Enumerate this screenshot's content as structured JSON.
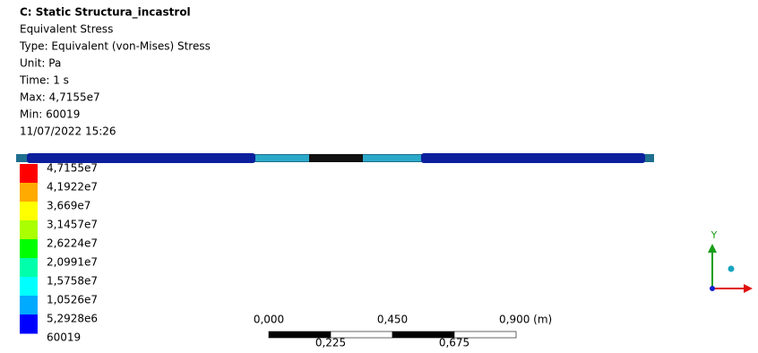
{
  "header": {
    "title": "C: Static Structura_incastrol",
    "lines": [
      "Equivalent Stress",
      "Type: Equivalent (von-Mises) Stress",
      "Unit: Pa",
      "Time: 1 s",
      "Max: 4,7155e7",
      "Min: 60019",
      "11/07/2022 15:26"
    ]
  },
  "legend": {
    "labels": [
      "4,7155e7",
      "4,1922e7",
      "3,669e7",
      "3,1457e7",
      "2,6224e7",
      "2,0991e7",
      "1,5758e7",
      "1,0526e7",
      "5,2928e6",
      "60019"
    ],
    "colors": [
      "#ff0000",
      "#ffaa00",
      "#ffff00",
      "#aaff00",
      "#00ff00",
      "#00ffaa",
      "#00ffff",
      "#00aaff",
      "#0000ff"
    ]
  },
  "scale": {
    "top_labels": [
      "0,000",
      "0,450",
      "0,900 (m)"
    ],
    "bottom_labels": [
      "0,225",
      "0,675"
    ]
  },
  "triad": {
    "y_label": "Y"
  }
}
